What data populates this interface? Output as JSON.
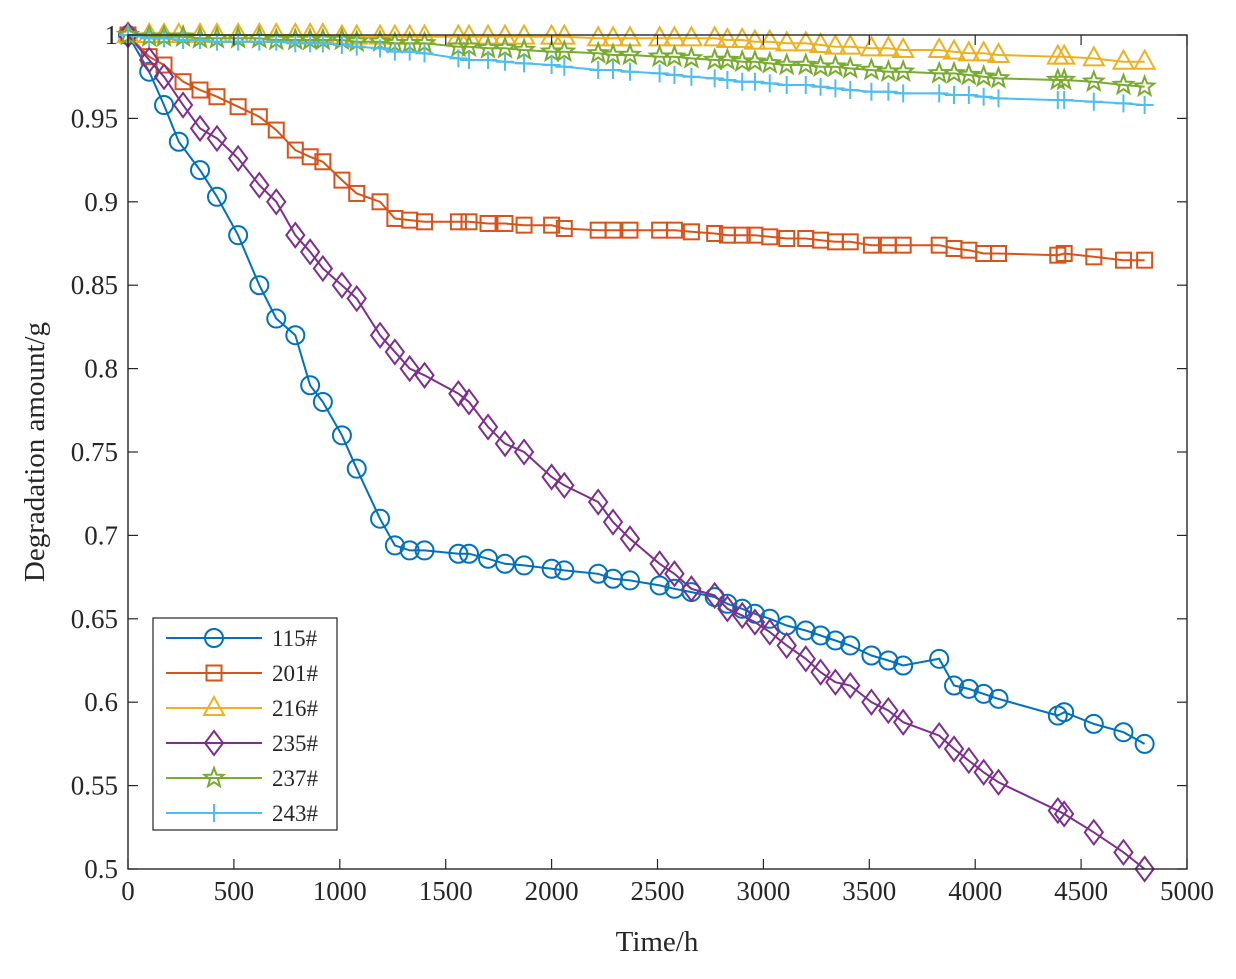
{
  "chart_data": {
    "type": "line",
    "title": "",
    "xlabel": "Time/h",
    "ylabel": "Degradation amount/g",
    "xlim": [
      0,
      5000
    ],
    "ylim": [
      0.5,
      1.0
    ],
    "grid": false,
    "legend_position": "bottom-left",
    "x_ticks": [
      0,
      500,
      1000,
      1500,
      2000,
      2500,
      3000,
      3500,
      4000,
      4500,
      5000
    ],
    "x_tick_labels": [
      "0",
      "500",
      "1000",
      "1500",
      "2000",
      "2500",
      "3000",
      "3500",
      "4000",
      "4500",
      "5000"
    ],
    "y_ticks": [
      0.5,
      0.55,
      0.6,
      0.65,
      0.7,
      0.75,
      0.8,
      0.85,
      0.9,
      0.95,
      1.0
    ],
    "y_tick_labels": [
      "0.5",
      "0.55",
      "0.6",
      "0.65",
      "0.7",
      "0.75",
      "0.8",
      "0.85",
      "0.9",
      "0.95",
      "1"
    ],
    "series": [
      {
        "name": "115#",
        "color": "#0072BD",
        "marker": "circle",
        "x": [
          0,
          100,
          170,
          240,
          340,
          420,
          520,
          620,
          700,
          790,
          860,
          920,
          1010,
          1080,
          1190,
          1260,
          1330,
          1400,
          1560,
          1610,
          1700,
          1780,
          1870,
          2000,
          2060,
          2220,
          2290,
          2370,
          2510,
          2580,
          2660,
          2770,
          2830,
          2900,
          2960,
          3030,
          3110,
          3200,
          3270,
          3340,
          3410,
          3510,
          3590,
          3660,
          3830,
          3900,
          3970,
          4040,
          4110,
          4390,
          4420,
          4560,
          4700,
          4800
        ],
        "y": [
          1.0,
          0.978,
          0.958,
          0.936,
          0.919,
          0.903,
          0.88,
          0.85,
          0.83,
          0.82,
          0.79,
          0.78,
          0.76,
          0.74,
          0.71,
          0.694,
          0.691,
          0.691,
          0.689,
          0.689,
          0.686,
          0.683,
          0.682,
          0.68,
          0.679,
          0.677,
          0.674,
          0.673,
          0.67,
          0.668,
          0.666,
          0.663,
          0.659,
          0.656,
          0.653,
          0.65,
          0.646,
          0.643,
          0.64,
          0.637,
          0.634,
          0.628,
          0.625,
          0.622,
          0.626,
          0.61,
          0.608,
          0.605,
          0.602,
          0.592,
          0.594,
          0.587,
          0.582,
          0.575
        ]
      },
      {
        "name": "201#",
        "color": "#D95319",
        "marker": "square",
        "x": [
          0,
          100,
          170,
          260,
          340,
          420,
          520,
          620,
          700,
          790,
          860,
          920,
          1010,
          1080,
          1190,
          1260,
          1330,
          1400,
          1560,
          1610,
          1700,
          1780,
          1870,
          2000,
          2060,
          2220,
          2290,
          2370,
          2510,
          2580,
          2660,
          2770,
          2830,
          2900,
          2960,
          3030,
          3110,
          3200,
          3270,
          3340,
          3410,
          3510,
          3590,
          3660,
          3830,
          3900,
          3970,
          4040,
          4110,
          4390,
          4420,
          4560,
          4700,
          4800
        ],
        "y": [
          1.0,
          0.987,
          0.982,
          0.972,
          0.967,
          0.963,
          0.957,
          0.951,
          0.943,
          0.931,
          0.927,
          0.924,
          0.913,
          0.905,
          0.9,
          0.89,
          0.889,
          0.888,
          0.888,
          0.888,
          0.887,
          0.887,
          0.886,
          0.886,
          0.884,
          0.883,
          0.883,
          0.883,
          0.883,
          0.883,
          0.882,
          0.881,
          0.88,
          0.88,
          0.88,
          0.879,
          0.878,
          0.878,
          0.877,
          0.876,
          0.876,
          0.874,
          0.874,
          0.874,
          0.874,
          0.872,
          0.871,
          0.869,
          0.869,
          0.868,
          0.869,
          0.867,
          0.865,
          0.865
        ]
      },
      {
        "name": "216#",
        "color": "#EDB120",
        "marker": "triangle",
        "x": [
          0,
          100,
          170,
          240,
          340,
          420,
          520,
          620,
          700,
          790,
          860,
          920,
          1010,
          1080,
          1190,
          1260,
          1330,
          1400,
          1560,
          1610,
          1700,
          1780,
          1870,
          2000,
          2060,
          2220,
          2290,
          2370,
          2510,
          2580,
          2660,
          2770,
          2830,
          2900,
          2960,
          3030,
          3110,
          3200,
          3270,
          3340,
          3410,
          3510,
          3590,
          3660,
          3830,
          3900,
          3970,
          4040,
          4110,
          4390,
          4420,
          4560,
          4700,
          4800
        ],
        "y": [
          1.0,
          1.0,
          1.0,
          1.0,
          1.0,
          1.0,
          1.0,
          1.0,
          1.0,
          1.0,
          1.0,
          1.0,
          0.999,
          0.999,
          0.999,
          0.999,
          0.999,
          0.999,
          0.999,
          0.999,
          0.999,
          0.999,
          0.999,
          0.999,
          0.999,
          0.998,
          0.998,
          0.998,
          0.998,
          0.998,
          0.998,
          0.998,
          0.997,
          0.997,
          0.996,
          0.996,
          0.995,
          0.995,
          0.994,
          0.993,
          0.993,
          0.992,
          0.992,
          0.991,
          0.991,
          0.99,
          0.989,
          0.989,
          0.988,
          0.987,
          0.987,
          0.986,
          0.984,
          0.984
        ]
      },
      {
        "name": "235#",
        "color": "#7E2F8E",
        "marker": "diamond",
        "x": [
          0,
          100,
          170,
          260,
          340,
          420,
          520,
          620,
          700,
          790,
          860,
          920,
          1010,
          1080,
          1190,
          1260,
          1330,
          1400,
          1560,
          1610,
          1700,
          1780,
          1870,
          2000,
          2060,
          2220,
          2290,
          2370,
          2510,
          2580,
          2660,
          2770,
          2830,
          2900,
          2960,
          3030,
          3110,
          3200,
          3270,
          3340,
          3410,
          3510,
          3590,
          3660,
          3830,
          3900,
          3970,
          4040,
          4110,
          4390,
          4420,
          4560,
          4700,
          4800
        ],
        "y": [
          1.0,
          0.985,
          0.975,
          0.958,
          0.944,
          0.938,
          0.926,
          0.91,
          0.9,
          0.88,
          0.87,
          0.86,
          0.85,
          0.842,
          0.82,
          0.81,
          0.8,
          0.796,
          0.785,
          0.78,
          0.765,
          0.755,
          0.75,
          0.735,
          0.73,
          0.72,
          0.708,
          0.698,
          0.683,
          0.677,
          0.668,
          0.664,
          0.656,
          0.652,
          0.648,
          0.642,
          0.634,
          0.626,
          0.618,
          0.612,
          0.61,
          0.6,
          0.595,
          0.588,
          0.58,
          0.572,
          0.565,
          0.558,
          0.552,
          0.535,
          0.533,
          0.522,
          0.51,
          0.5
        ]
      },
      {
        "name": "237#",
        "color": "#77AC30",
        "marker": "star",
        "x": [
          0,
          100,
          170,
          260,
          340,
          420,
          520,
          620,
          700,
          790,
          860,
          920,
          1010,
          1080,
          1190,
          1260,
          1330,
          1400,
          1560,
          1610,
          1700,
          1780,
          1870,
          2000,
          2060,
          2220,
          2290,
          2370,
          2510,
          2580,
          2660,
          2770,
          2830,
          2900,
          2960,
          3030,
          3110,
          3200,
          3270,
          3340,
          3410,
          3510,
          3590,
          3660,
          3830,
          3900,
          3970,
          4040,
          4110,
          4390,
          4420,
          4560,
          4700,
          4800
        ],
        "y": [
          1.0,
          0.999,
          0.999,
          0.999,
          0.998,
          0.998,
          0.998,
          0.998,
          0.997,
          0.997,
          0.997,
          0.997,
          0.997,
          0.996,
          0.996,
          0.995,
          0.995,
          0.995,
          0.993,
          0.993,
          0.992,
          0.992,
          0.991,
          0.99,
          0.99,
          0.989,
          0.988,
          0.988,
          0.987,
          0.987,
          0.986,
          0.985,
          0.985,
          0.984,
          0.984,
          0.983,
          0.982,
          0.982,
          0.981,
          0.981,
          0.98,
          0.979,
          0.978,
          0.978,
          0.977,
          0.977,
          0.976,
          0.975,
          0.974,
          0.973,
          0.973,
          0.972,
          0.97,
          0.969
        ]
      },
      {
        "name": "243#",
        "color": "#4DBEEE",
        "marker": "plus",
        "x": [
          0,
          100,
          170,
          260,
          340,
          420,
          520,
          620,
          700,
          790,
          860,
          920,
          1010,
          1080,
          1190,
          1260,
          1330,
          1400,
          1560,
          1610,
          1700,
          1780,
          1870,
          2000,
          2060,
          2220,
          2290,
          2370,
          2510,
          2580,
          2660,
          2770,
          2830,
          2900,
          2960,
          3030,
          3110,
          3200,
          3270,
          3340,
          3410,
          3510,
          3590,
          3660,
          3830,
          3900,
          3970,
          4040,
          4110,
          4390,
          4420,
          4560,
          4700,
          4800
        ],
        "y": [
          1.0,
          0.998,
          0.998,
          0.997,
          0.997,
          0.996,
          0.996,
          0.996,
          0.996,
          0.995,
          0.995,
          0.995,
          0.994,
          0.993,
          0.992,
          0.99,
          0.99,
          0.989,
          0.986,
          0.985,
          0.985,
          0.984,
          0.983,
          0.982,
          0.981,
          0.979,
          0.979,
          0.978,
          0.977,
          0.976,
          0.975,
          0.974,
          0.973,
          0.972,
          0.972,
          0.971,
          0.97,
          0.97,
          0.969,
          0.968,
          0.967,
          0.966,
          0.966,
          0.965,
          0.965,
          0.964,
          0.964,
          0.963,
          0.962,
          0.961,
          0.961,
          0.96,
          0.959,
          0.958
        ]
      }
    ]
  }
}
